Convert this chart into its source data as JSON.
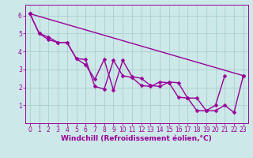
{
  "x": [
    0,
    1,
    2,
    3,
    4,
    5,
    6,
    7,
    8,
    9,
    10,
    11,
    12,
    13,
    14,
    15,
    16,
    17,
    18,
    19,
    20,
    21,
    22,
    23
  ],
  "line1": [
    6.1,
    5.0,
    4.65,
    4.5,
    4.5,
    3.6,
    3.25,
    2.45,
    3.55,
    1.85,
    3.5,
    2.6,
    2.5,
    2.1,
    2.05,
    2.3,
    2.25,
    1.4,
    1.4,
    0.7,
    0.7,
    1.0,
    0.6,
    2.65
  ],
  "line2": [
    6.1,
    5.0,
    4.8,
    4.5,
    4.5,
    3.6,
    3.55,
    2.05,
    1.9,
    3.5,
    2.65,
    2.55,
    2.1,
    2.05,
    2.3,
    2.25,
    1.45,
    1.4,
    0.7,
    0.7,
    1.0,
    2.65,
    null,
    null
  ],
  "line3_x": [
    0,
    23
  ],
  "line3_y": [
    6.1,
    2.65
  ],
  "color": "#990099",
  "bg_color": "#cce8e8",
  "grid_color": "#aacfcf",
  "xlabel": "Windchill (Refroidissement éolien,°C)",
  "xlim": [
    -0.5,
    23.5
  ],
  "ylim": [
    0,
    6.6
  ],
  "xticks": [
    0,
    1,
    2,
    3,
    4,
    5,
    6,
    7,
    8,
    9,
    10,
    11,
    12,
    13,
    14,
    15,
    16,
    17,
    18,
    19,
    20,
    21,
    22,
    23
  ],
  "yticks": [
    1,
    2,
    3,
    4,
    5,
    6
  ],
  "markersize": 2.5,
  "linewidth": 1.0,
  "label_fontsize": 6.5,
  "tick_fontsize": 5.5
}
